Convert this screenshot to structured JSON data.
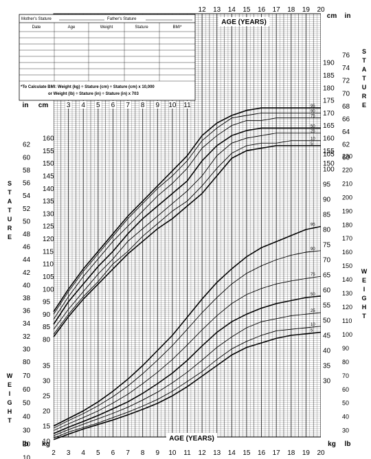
{
  "table": {
    "mothers_stature": "Mother's Stature",
    "fathers_stature": "Father's Stature",
    "columns": [
      "Date",
      "Age",
      "Weight",
      "Stature",
      "BMI*"
    ],
    "bmi_note_1": "*To Calculate BMI: Weight (kg) ÷ Stature (cm) ÷ Stature (cm) x 10,000",
    "bmi_note_2": "or Weight (lb) ÷ Stature (in) ÷ Stature (in) x 703"
  },
  "labels": {
    "age_years_top": "AGE (YEARS)",
    "age_years_bottom": "AGE (YEARS)",
    "stature_vertical": [
      "S",
      "T",
      "A",
      "T",
      "U",
      "R",
      "E"
    ],
    "weight_vertical": [
      "W",
      "E",
      "I",
      "G",
      "H",
      "T"
    ],
    "unit_cm": "cm",
    "unit_in": "in",
    "unit_kg": "kg",
    "unit_lb": "lb"
  },
  "chart_data": {
    "type": "line",
    "x": [
      2,
      3,
      4,
      5,
      6,
      7,
      8,
      9,
      10,
      11,
      12,
      13,
      14,
      15,
      16,
      17,
      18,
      19,
      20
    ],
    "xlabel": "AGE (YEARS)",
    "xlim": [
      2,
      20
    ],
    "x_ticks_bottom": [
      "2",
      "3",
      "4",
      "5",
      "6",
      "7",
      "8",
      "9",
      "10",
      "11",
      "12",
      "13",
      "14",
      "15",
      "16",
      "17",
      "18",
      "19",
      "20"
    ],
    "x_ticks_top": [
      "12",
      "13",
      "14",
      "15",
      "16",
      "17",
      "18",
      "19",
      "20"
    ],
    "x_ticks_mid": [
      "3",
      "4",
      "5",
      "6",
      "7",
      "8",
      "9",
      "10",
      "11"
    ],
    "stature": {
      "ylabel": "STATURE",
      "ylim_cm": [
        75,
        200
      ],
      "percentiles": [
        {
          "name": "5",
          "values": [
            81,
            89,
            96,
            102,
            108,
            114,
            119,
            124,
            128,
            133,
            138,
            145,
            152,
            155,
            156,
            157,
            157,
            157,
            157
          ]
        },
        {
          "name": "10",
          "values": [
            82,
            90,
            97,
            103,
            110,
            115,
            121,
            126,
            131,
            135,
            141,
            148,
            154,
            157,
            158,
            158,
            159,
            159,
            159
          ]
        },
        {
          "name": "25",
          "values": [
            84,
            92,
            99,
            106,
            112,
            119,
            124,
            129,
            134,
            139,
            145,
            153,
            158,
            160,
            161,
            162,
            162,
            162,
            162
          ]
        },
        {
          "name": "50",
          "values": [
            86,
            95,
            102,
            109,
            115,
            122,
            128,
            133,
            138,
            143,
            151,
            157,
            161,
            163,
            164,
            164,
            164,
            164,
            164
          ]
        },
        {
          "name": "75",
          "values": [
            88,
            97,
            105,
            112,
            119,
            125,
            131,
            137,
            142,
            148,
            156,
            161,
            165,
            167,
            167,
            168,
            168,
            168,
            168
          ]
        },
        {
          "name": "90",
          "values": [
            90,
            99,
            107,
            114,
            121,
            128,
            134,
            140,
            145,
            151,
            159,
            164,
            168,
            169,
            170,
            170,
            170,
            170,
            170
          ]
        },
        {
          "name": "95",
          "values": [
            91,
            100,
            108,
            115,
            122,
            129,
            135,
            141,
            147,
            153,
            161,
            166,
            169,
            171,
            172,
            172,
            172,
            172,
            172
          ]
        }
      ],
      "cm_ticks_left": [
        "80",
        "85",
        "90",
        "95",
        "100",
        "105",
        "110",
        "115",
        "120",
        "125",
        "130",
        "135",
        "140",
        "145",
        "150",
        "155",
        "160"
      ],
      "in_ticks_left": [
        "30",
        "32",
        "34",
        "36",
        "38",
        "40",
        "42",
        "44",
        "46",
        "48",
        "50",
        "52",
        "54",
        "56",
        "58",
        "60",
        "62"
      ],
      "cm_ticks_right": [
        "150",
        "155",
        "160",
        "165",
        "170",
        "175",
        "180",
        "185",
        "190"
      ],
      "in_ticks_right": [
        "60",
        "62",
        "64",
        "66",
        "68",
        "70",
        "72",
        "74",
        "76"
      ]
    },
    "weight": {
      "ylabel": "WEIGHT",
      "ylim_kg": [
        5,
        105
      ],
      "percentiles": [
        {
          "name": "5",
          "values": [
            10.5,
            12.3,
            14,
            15.5,
            17,
            18.7,
            20.5,
            22.5,
            25,
            28,
            31.5,
            35,
            38.5,
            41,
            42.5,
            44,
            45,
            45.5,
            46
          ]
        },
        {
          "name": "10",
          "values": [
            11,
            13,
            14.5,
            16,
            17.8,
            19.6,
            21.6,
            23.8,
            26.5,
            29.7,
            33,
            37,
            40.5,
            43,
            45,
            46.5,
            47,
            47.5,
            48
          ]
        },
        {
          "name": "25",
          "values": [
            11.8,
            13.8,
            15.6,
            17.4,
            19.2,
            21.2,
            23.6,
            26.2,
            29.3,
            32.8,
            36.8,
            41,
            44.5,
            47.5,
            49.5,
            50.5,
            51.5,
            52,
            52.5
          ]
        },
        {
          "name": "50",
          "values": [
            12.5,
            14.6,
            16.5,
            18.5,
            20.7,
            23,
            25.8,
            29,
            32.5,
            36.7,
            41.5,
            46,
            49.5,
            52,
            54,
            55.5,
            56.5,
            57.5,
            58
          ]
        },
        {
          "name": "75",
          "values": [
            13.5,
            15.7,
            17.8,
            20,
            22.6,
            25.5,
            29,
            32.8,
            37,
            41.8,
            46.8,
            51.5,
            55.5,
            58.5,
            60.5,
            62,
            63,
            63.8,
            64.5
          ]
        },
        {
          "name": "90",
          "values": [
            14.3,
            16.8,
            19.1,
            21.7,
            24.7,
            28.2,
            32.3,
            36.8,
            41.6,
            47,
            52.5,
            57.5,
            62,
            65.5,
            68,
            70,
            71.5,
            72.5,
            73
          ]
        },
        {
          "name": "95",
          "values": [
            15,
            17.5,
            20,
            23,
            26.5,
            30.5,
            35,
            40,
            45,
            51,
            57,
            62.5,
            67,
            71,
            74,
            76,
            78,
            80,
            81
          ]
        }
      ],
      "kg_ticks_left": [
        "10",
        "15",
        "20",
        "25",
        "30",
        "35"
      ],
      "lb_ticks_left": [
        "10",
        "20",
        "30",
        "40",
        "50",
        "60",
        "70",
        "80"
      ],
      "kg_ticks_right": [
        "30",
        "35",
        "40",
        "45",
        "50",
        "55",
        "60",
        "65",
        "70",
        "75",
        "80",
        "85",
        "90",
        "95",
        "100",
        "105"
      ],
      "lb_ticks_right": [
        "30",
        "40",
        "50",
        "60",
        "70",
        "80",
        "90",
        "100",
        "110",
        "120",
        "130",
        "140",
        "150",
        "160",
        "170",
        "180",
        "190",
        "200",
        "210",
        "220",
        "230"
      ]
    }
  }
}
